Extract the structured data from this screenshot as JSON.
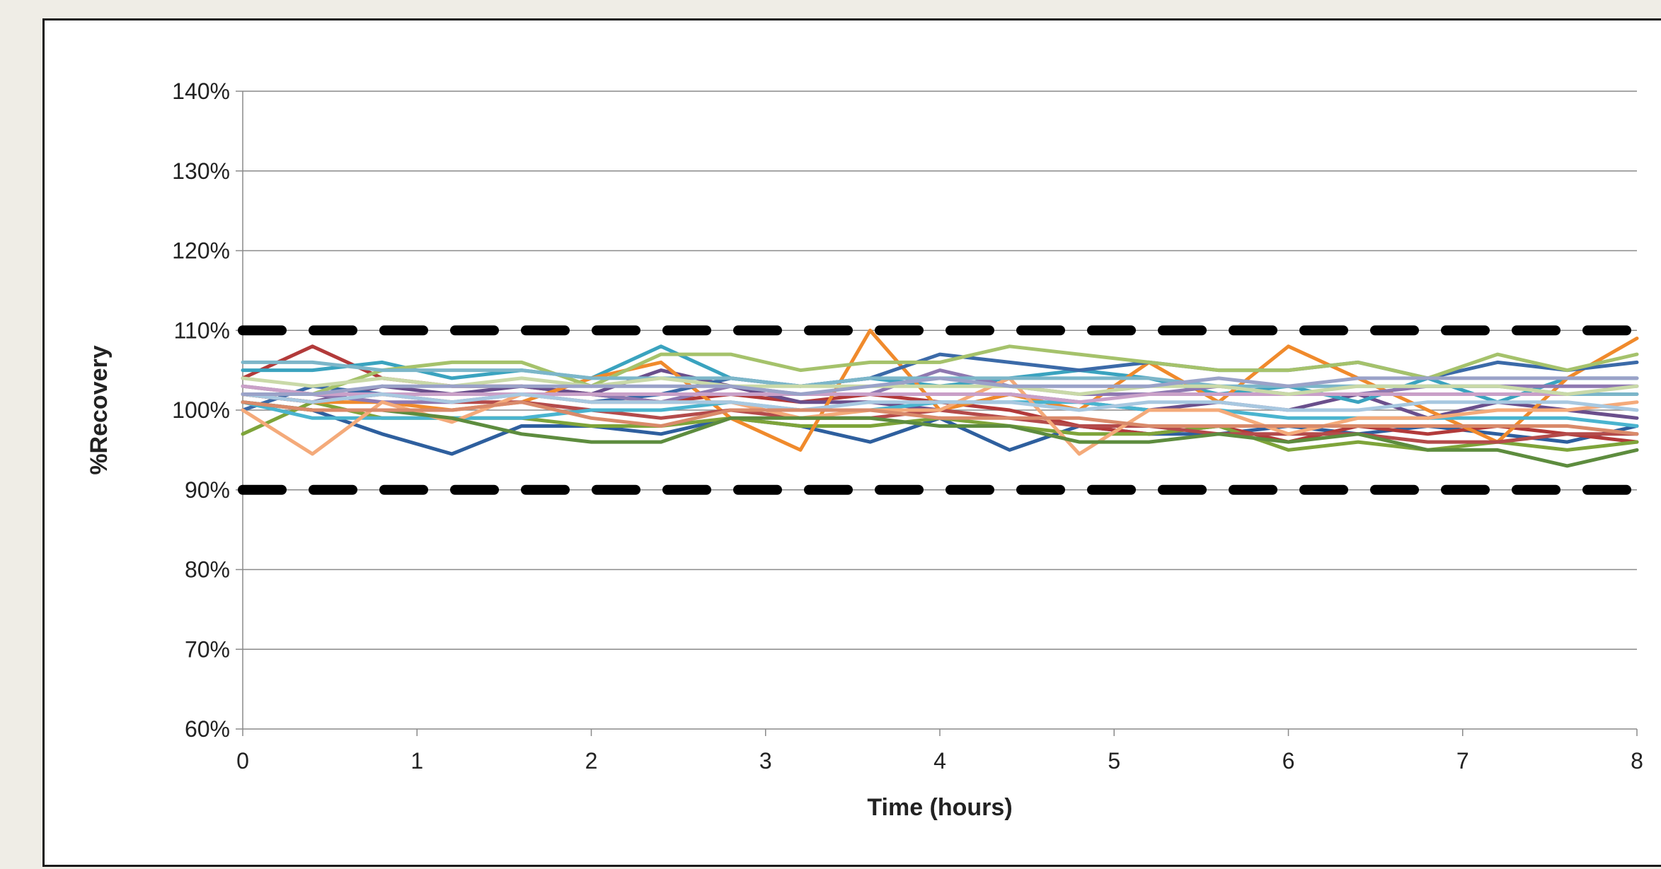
{
  "chart_data": {
    "type": "line",
    "xlabel": "Time (hours)",
    "ylabel": "%Recovery",
    "xlim": [
      0,
      8
    ],
    "ylim": [
      60,
      140
    ],
    "x_ticks": [
      0,
      1,
      2,
      3,
      4,
      5,
      6,
      7,
      8
    ],
    "x_tick_labels": [
      "0",
      "1",
      "2",
      "3",
      "4",
      "5",
      "6",
      "7",
      "8"
    ],
    "y_ticks": [
      60,
      70,
      80,
      90,
      100,
      110,
      120,
      130,
      140
    ],
    "y_tick_labels": [
      "60%",
      "70%",
      "80%",
      "90%",
      "100%",
      "110%",
      "120%",
      "130%",
      "140%"
    ],
    "grid": "horizontal",
    "legend": "none",
    "limits": [
      {
        "y": 110,
        "color": "#000000",
        "style": "dashed"
      },
      {
        "y": 90,
        "color": "#000000",
        "style": "dashed"
      }
    ],
    "x": [
      0,
      0.4,
      0.8,
      1.2,
      1.6,
      2.0,
      2.4,
      2.8,
      3.2,
      3.6,
      4.0,
      4.4,
      4.8,
      5.2,
      5.6,
      6.0,
      6.4,
      6.8,
      7.2,
      7.6,
      8.0
    ],
    "series": [
      {
        "color": "#2e5f9e",
        "values": [
          101,
          100,
          97,
          94.5,
          98,
          98,
          97,
          99,
          98,
          96,
          99,
          95,
          98,
          97,
          97,
          98,
          97,
          98,
          97,
          96,
          98
        ]
      },
      {
        "color": "#b23a3a",
        "values": [
          104,
          108,
          104,
          103,
          103,
          102,
          101,
          102,
          101,
          102,
          101,
          100,
          98,
          97,
          98,
          96,
          98,
          97,
          98,
          97,
          96
        ]
      },
      {
        "color": "#7ea43a",
        "values": [
          97,
          101,
          99,
          99,
          99,
          98,
          98,
          99,
          98,
          98,
          99,
          98,
          97,
          97,
          98,
          95,
          96,
          95,
          96,
          95,
          96
        ]
      },
      {
        "color": "#6a4f8c",
        "values": [
          102,
          101,
          103,
          102,
          103,
          102,
          105,
          103,
          101,
          101,
          100,
          102,
          101,
          100,
          101,
          100,
          102,
          99,
          101,
          100,
          99
        ]
      },
      {
        "color": "#3aa3bf",
        "values": [
          105,
          105,
          106,
          104,
          105,
          104,
          108,
          104,
          103,
          104,
          103,
          104,
          105,
          104,
          102,
          103,
          101,
          104,
          101,
          104,
          104
        ]
      },
      {
        "color": "#f08a2c",
        "values": [
          102,
          101,
          101,
          100,
          101,
          104,
          106,
          99,
          95,
          110,
          100,
          102,
          100,
          106,
          101,
          108,
          104,
          100,
          96,
          104,
          109
        ]
      },
      {
        "color": "#3b6aa8",
        "values": [
          100,
          103,
          102,
          102,
          102,
          101,
          102,
          104,
          103,
          104,
          107,
          106,
          105,
          106,
          105,
          105,
          106,
          104,
          106,
          105,
          106
        ]
      },
      {
        "color": "#b44b4b",
        "values": [
          102,
          101,
          102,
          101,
          101,
          100,
          99,
          100,
          99,
          99,
          100,
          99,
          98,
          98,
          97,
          97,
          97,
          96,
          96,
          97,
          97
        ]
      },
      {
        "color": "#a5c26b",
        "values": [
          103,
          102,
          105,
          106,
          106,
          103,
          107,
          107,
          105,
          106,
          106,
          108,
          107,
          106,
          105,
          105,
          106,
          104,
          107,
          105,
          107
        ]
      },
      {
        "color": "#8f79b1",
        "values": [
          103,
          102,
          101,
          101,
          102,
          102,
          101,
          103,
          102,
          102,
          105,
          103,
          102,
          102,
          103,
          102,
          102,
          103,
          103,
          103,
          103
        ]
      },
      {
        "color": "#4ab4cf",
        "values": [
          101,
          99,
          99,
          99,
          99,
          100,
          100,
          101,
          100,
          100,
          101,
          101,
          101,
          100,
          100,
          99,
          99,
          99,
          99,
          99,
          98
        ]
      },
      {
        "color": "#f4aa7a",
        "values": [
          100,
          94.5,
          101,
          98.5,
          102,
          101,
          101,
          101,
          99,
          100,
          100,
          104,
          94.5,
          100,
          100,
          97,
          99,
          99,
          100,
          100,
          101
        ]
      },
      {
        "color": "#5d8c3e",
        "values": [
          101,
          100,
          100,
          99,
          97,
          96,
          96,
          99,
          99,
          99,
          98,
          98,
          96,
          96,
          97,
          96,
          97,
          95,
          95,
          93,
          95
        ]
      },
      {
        "color": "#c9a0c8",
        "values": [
          103,
          102,
          102,
          102,
          102,
          102,
          102,
          102,
          102,
          102,
          102,
          102,
          101,
          102,
          102,
          102,
          102,
          102,
          102,
          102,
          102
        ]
      },
      {
        "color": "#a8c8e0",
        "values": [
          102,
          101,
          102,
          101,
          102,
          101,
          101,
          101,
          100,
          101,
          101,
          101,
          100,
          101,
          101,
          100,
          100,
          101,
          101,
          101,
          100
        ]
      },
      {
        "color": "#7cb6c9",
        "values": [
          106,
          106,
          105,
          105,
          105,
          104,
          104,
          104,
          103,
          104,
          104,
          104,
          104,
          104,
          103,
          103,
          103,
          103,
          103,
          102,
          102
        ]
      },
      {
        "color": "#c9d9a8",
        "values": [
          104,
          103,
          104,
          103,
          104,
          103,
          104,
          103,
          103,
          103,
          103,
          103,
          102,
          103,
          103,
          102,
          103,
          103,
          103,
          102,
          103
        ]
      },
      {
        "color": "#d98a6a",
        "values": [
          101,
          100,
          100,
          100,
          101,
          99,
          98,
          100,
          100,
          100,
          99,
          99,
          99,
          98,
          98,
          98,
          98,
          98,
          98,
          98,
          97
        ]
      },
      {
        "color": "#9aa2c8",
        "values": [
          102,
          102,
          103,
          103,
          103,
          103,
          103,
          103,
          102,
          103,
          104,
          103,
          103,
          103,
          104,
          103,
          104,
          104,
          104,
          104,
          104
        ]
      }
    ]
  }
}
